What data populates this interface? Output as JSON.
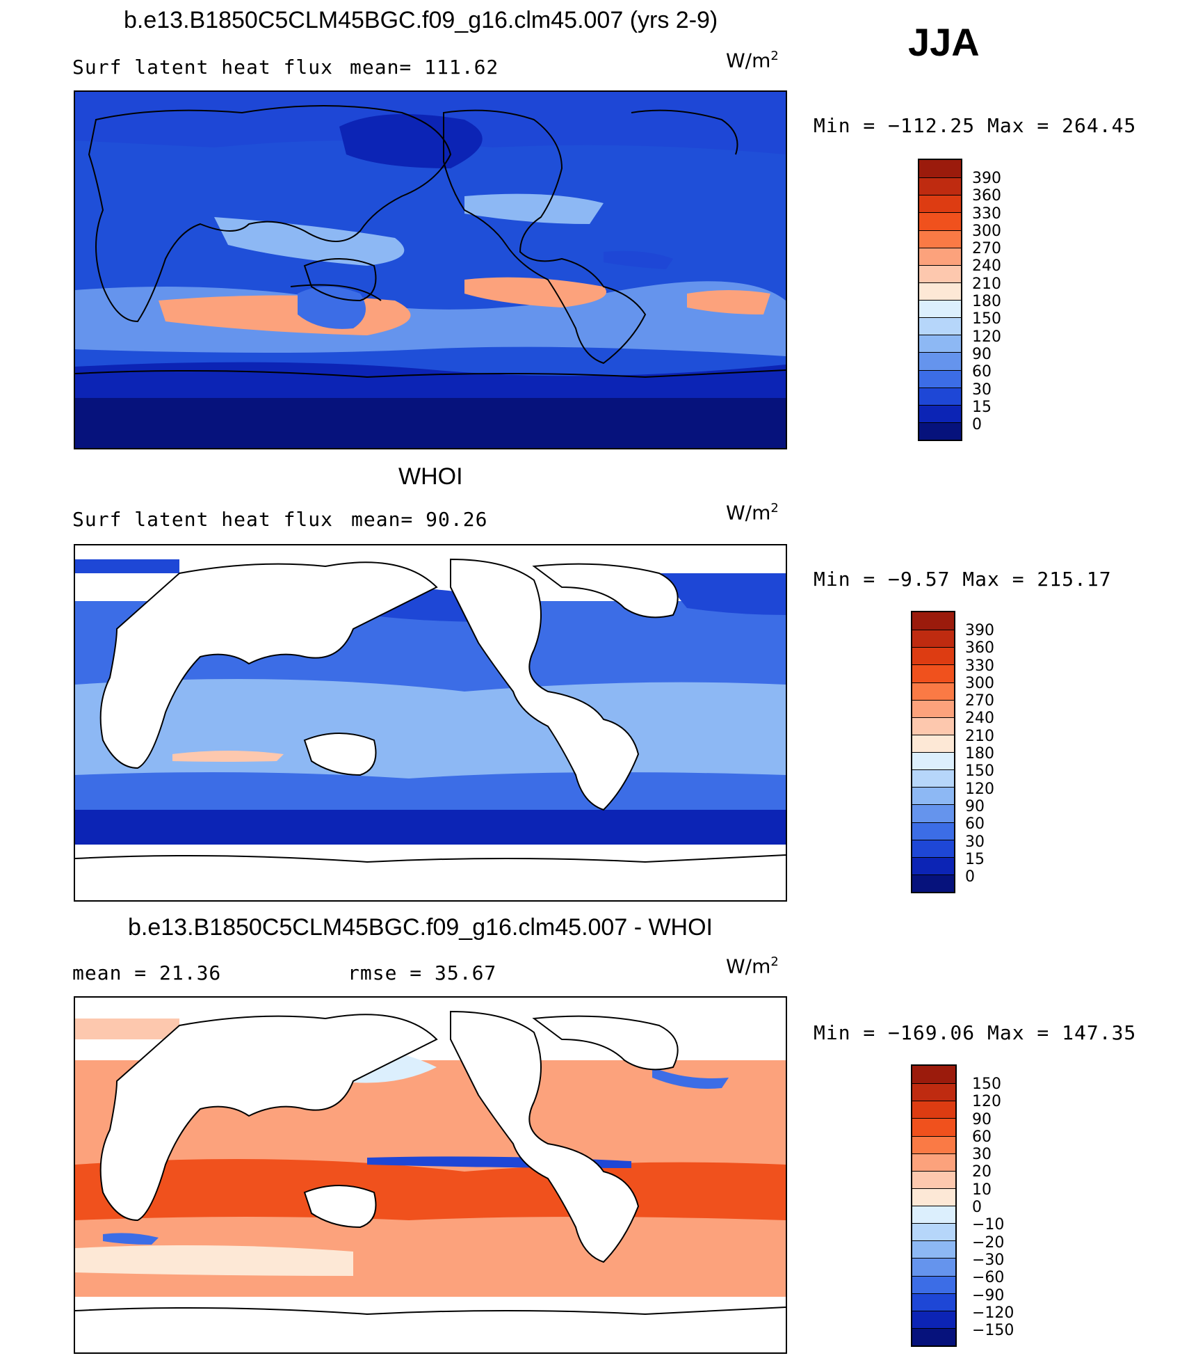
{
  "header": {
    "season": "JJA"
  },
  "units_label": "W/m",
  "units_sup": "2",
  "panels": [
    {
      "title": "b.e13.B1850C5CLM45BGC.f09_g16.clm45.007 (yrs 2-9)",
      "left_label": "Surf latent heat flux",
      "mid_label": "mean= 111.62",
      "minmax": "Min = −112.25 Max = 264.45",
      "colorbar": {
        "labels": [
          "390",
          "360",
          "330",
          "300",
          "270",
          "240",
          "210",
          "180",
          "150",
          "120",
          "90",
          "60",
          "30",
          "15",
          "0"
        ],
        "colors": [
          "#9b1b0c",
          "#bf2b10",
          "#dd3c12",
          "#f0511d",
          "#fa7a45",
          "#fca27c",
          "#fdc8ae",
          "#fde8d6",
          "#dceffd",
          "#b6d6fa",
          "#8db8f4",
          "#6594ed",
          "#3c6de6",
          "#1e47d6",
          "#0c24b5",
          "#06127c"
        ]
      }
    },
    {
      "title": "WHOI",
      "left_label": "Surf latent heat flux",
      "mid_label": "mean=  90.26",
      "minmax": "Min =  −9.57 Max = 215.17",
      "colorbar": {
        "labels": [
          "390",
          "360",
          "330",
          "300",
          "270",
          "240",
          "210",
          "180",
          "150",
          "120",
          "90",
          "60",
          "30",
          "15",
          "0"
        ],
        "colors": [
          "#9b1b0c",
          "#bf2b10",
          "#dd3c12",
          "#f0511d",
          "#fa7a45",
          "#fca27c",
          "#fdc8ae",
          "#fde8d6",
          "#dceffd",
          "#b6d6fa",
          "#8db8f4",
          "#6594ed",
          "#3c6de6",
          "#1e47d6",
          "#0c24b5",
          "#06127c"
        ]
      }
    },
    {
      "title": "b.e13.B1850C5CLM45BGC.f09_g16.clm45.007 - WHOI",
      "left_label": "mean =  21.36",
      "mid_label": "rmse =  35.67",
      "minmax": "Min = −169.06 Max = 147.35",
      "colorbar": {
        "labels": [
          "150",
          "120",
          "90",
          "60",
          "30",
          "20",
          "10",
          "0",
          "−10",
          "−20",
          "−30",
          "−60",
          "−90",
          "−120",
          "−150"
        ],
        "colors": [
          "#9b1b0c",
          "#bf2b10",
          "#dd3c12",
          "#f0511d",
          "#fa7a45",
          "#fca27c",
          "#fdc8ae",
          "#fde8d6",
          "#dceffd",
          "#b6d6fa",
          "#8db8f4",
          "#6594ed",
          "#3c6de6",
          "#1e47d6",
          "#0c24b5",
          "#06127c"
        ]
      }
    }
  ]
}
